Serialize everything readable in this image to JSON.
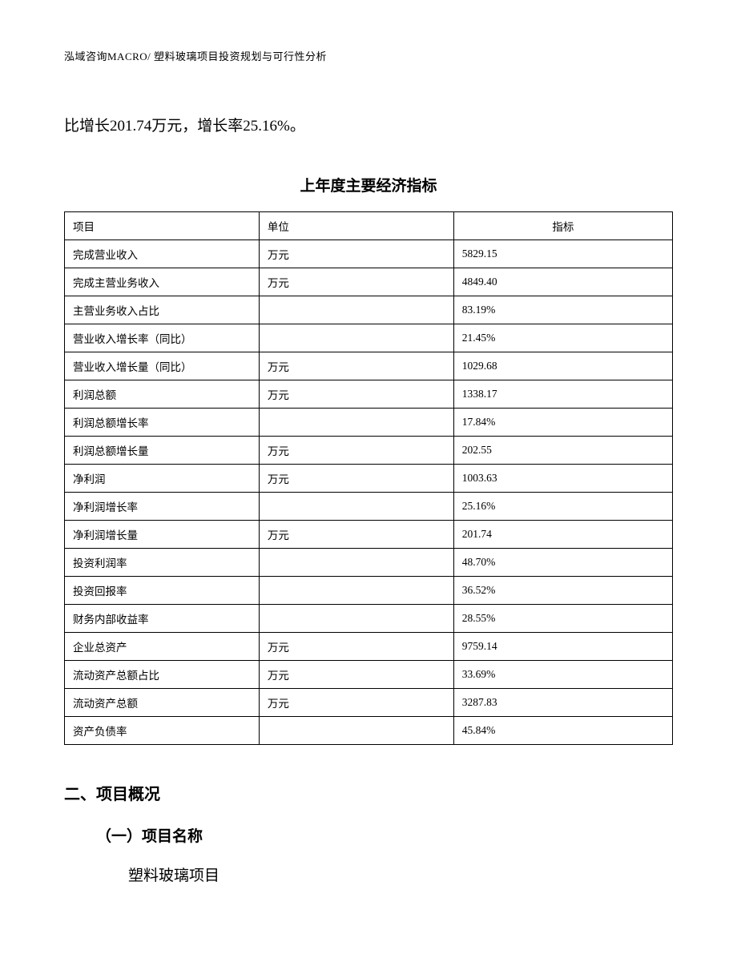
{
  "header": "泓域咨询MACRO/ 塑料玻璃项目投资规划与可行性分析",
  "body_text": "比增长201.74万元，增长率25.16%。",
  "table": {
    "title": "上年度主要经济指标",
    "columns": [
      "项目",
      "单位",
      "指标"
    ],
    "rows": [
      [
        "完成营业收入",
        "万元",
        "5829.15"
      ],
      [
        "完成主营业务收入",
        "万元",
        "4849.40"
      ],
      [
        "主营业务收入占比",
        "",
        "83.19%"
      ],
      [
        "营业收入增长率（同比）",
        "",
        "21.45%"
      ],
      [
        "营业收入增长量（同比）",
        "万元",
        "1029.68"
      ],
      [
        "利润总额",
        "万元",
        "1338.17"
      ],
      [
        "利润总额增长率",
        "",
        "17.84%"
      ],
      [
        "利润总额增长量",
        "万元",
        "202.55"
      ],
      [
        "净利润",
        "万元",
        "1003.63"
      ],
      [
        "净利润增长率",
        "",
        "25.16%"
      ],
      [
        "净利润增长量",
        "万元",
        "201.74"
      ],
      [
        "投资利润率",
        "",
        "48.70%"
      ],
      [
        "投资回报率",
        "",
        "36.52%"
      ],
      [
        "财务内部收益率",
        "",
        "28.55%"
      ],
      [
        "企业总资产",
        "万元",
        "9759.14"
      ],
      [
        "流动资产总额占比",
        "万元",
        "33.69%"
      ],
      [
        "流动资产总额",
        "万元",
        "3287.83"
      ],
      [
        "资产负债率",
        "",
        "45.84%"
      ]
    ]
  },
  "section": {
    "heading": "二、项目概况",
    "subsection": "（一）项目名称",
    "content": "塑料玻璃项目"
  }
}
